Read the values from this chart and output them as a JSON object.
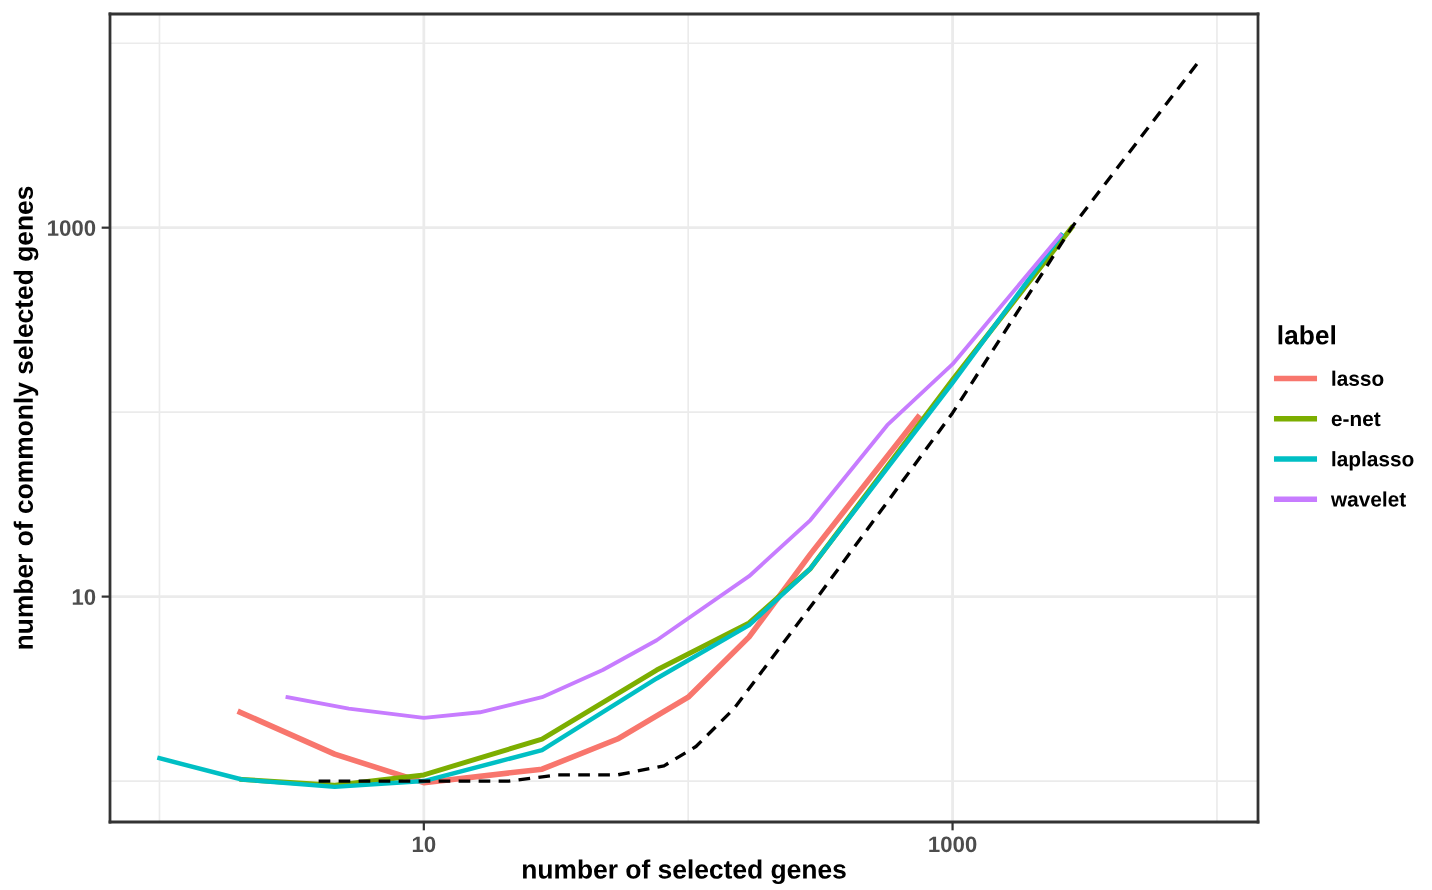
{
  "chart_data": {
    "type": "line",
    "xlabel": "number of selected genes",
    "ylabel": "number of commonly selected genes",
    "legend_title": "label",
    "legend": "right",
    "log": "xy",
    "grid": true,
    "xlim": [
      0.65,
      14300
    ],
    "ylim": [
      0.6,
      14400
    ],
    "xticks": [
      {
        "value": 1,
        "label": null
      },
      10,
      {
        "value": 100,
        "label": null
      },
      1000,
      {
        "value": 10000,
        "label": null
      }
    ],
    "yticks": [
      {
        "value": 1,
        "label": null
      },
      10,
      {
        "value": 100,
        "label": null
      },
      1000,
      {
        "value": 10000,
        "label": null
      }
    ],
    "series": [
      {
        "name": "lasso",
        "color": "#f8766d",
        "x": [
          2.02,
          4.6,
          10,
          28,
          54,
          100,
          170,
          290,
          740
        ],
        "values": [
          2.36,
          1.4,
          0.98,
          1.16,
          1.69,
          2.85,
          6.05,
          17,
          94
        ]
      },
      {
        "name": "e-net",
        "color": "#7cae00",
        "x": [
          2.05,
          4.6,
          10,
          28,
          76,
          170,
          290,
          1000,
          2820
        ],
        "values": [
          1.02,
          0.95,
          1.08,
          1.69,
          4.0,
          7.2,
          14.2,
          150,
          1000
        ]
      },
      {
        "name": "laplasso",
        "color": "#00bfc4",
        "x": [
          1.0,
          2.05,
          4.6,
          10,
          28,
          76,
          170,
          290,
          1000,
          2580
        ],
        "values": [
          1.33,
          1.02,
          0.93,
          1.0,
          1.47,
          3.6,
          7.0,
          14.2,
          144,
          912
        ]
      },
      {
        "name": "wavelet",
        "color": "#c77cff",
        "x": [
          3.05,
          5.2,
          10,
          16.3,
          28,
          47.5,
          76,
          170,
          290,
          566,
          1000,
          2560
        ],
        "values": [
          2.85,
          2.47,
          2.2,
          2.36,
          2.85,
          4.0,
          5.8,
          12.9,
          26,
          85,
          182,
          910
        ]
      },
      {
        "color": "#000000",
        "line_style": "dashed",
        "x": [
          4.0,
          10,
          21,
          32,
          54,
          81,
          107,
          149,
          290,
          1000,
          2820,
          8700
        ],
        "values": [
          1.0,
          1.0,
          1.0,
          1.08,
          1.08,
          1.21,
          1.54,
          2.47,
          8.8,
          99,
          1000,
          8240
        ]
      }
    ]
  }
}
